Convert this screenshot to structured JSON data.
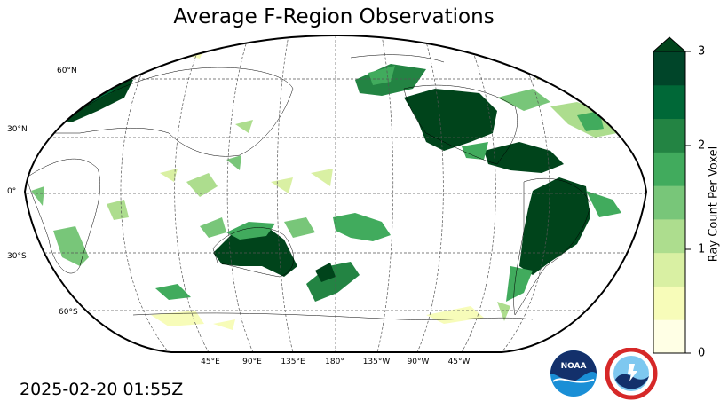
{
  "title": "Average F-Region Observations",
  "timestamp": "2025-02-20 01:55Z",
  "lat_labels": [
    "60°N",
    "30°N",
    "0°",
    "30°S",
    "60°S"
  ],
  "lon_labels": [
    "45°E",
    "90°E",
    "135°E",
    "180°",
    "135°W",
    "90°W",
    "45°W"
  ],
  "colorbar": {
    "label": "Ray Count Per Voxel",
    "ticks": [
      "0",
      "1",
      "2",
      "3"
    ],
    "min": 0,
    "max": 3,
    "extend": "max",
    "colors": [
      "#ffffe5",
      "#f7fcb9",
      "#d9f0a3",
      "#addd8e",
      "#78c679",
      "#41ab5d",
      "#238443",
      "#006837",
      "#004529"
    ]
  },
  "logos": [
    "noaa-logo",
    "national-weather-service-logo"
  ],
  "colors": {
    "high": "#00441b",
    "mid": "#41ab5d",
    "low": "#f7fcb9"
  }
}
